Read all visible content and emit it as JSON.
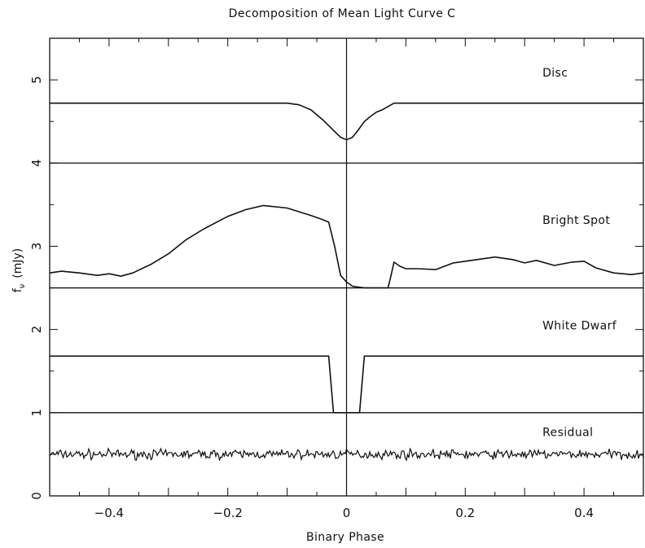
{
  "chart_data": {
    "type": "line",
    "title": "Decomposition of Mean Light Curve C",
    "xlabel": "Binary Phase",
    "ylabel_main": "f",
    "ylabel_sub": "ν",
    "ylabel_unit": "(mJy)",
    "xlim": [
      -0.5,
      0.5
    ],
    "ylim": [
      0,
      5.5
    ],
    "x_ticks": [
      -0.4,
      -0.2,
      0,
      0.2,
      0.4
    ],
    "x_tick_labels": [
      "−0.4",
      "−0.2",
      "0",
      "0.2",
      "0.4"
    ],
    "y_ticks": [
      0,
      1,
      2,
      3,
      4,
      5
    ],
    "y_tick_labels": [
      "0",
      "1",
      "2",
      "3",
      "4",
      "5"
    ],
    "vertical_line_x": 0,
    "baselines": [
      4.0,
      2.5,
      1.0
    ],
    "grid": false,
    "legend": "none",
    "annotations": [
      {
        "text": "Disc",
        "x": 0.33,
        "y": 5.04
      },
      {
        "text": "Bright Spot",
        "x": 0.33,
        "y": 3.27
      },
      {
        "text": "White Dwarf",
        "x": 0.33,
        "y": 2.0
      },
      {
        "text": "Residual",
        "x": 0.33,
        "y": 0.72
      }
    ],
    "series": [
      {
        "label": "Disc",
        "x": [
          -0.5,
          -0.1,
          -0.08,
          -0.06,
          -0.04,
          -0.02,
          -0.01,
          0.0,
          0.01,
          0.02,
          0.03,
          0.04,
          0.05,
          0.06,
          0.07,
          0.08,
          0.5
        ],
        "y": [
          4.72,
          4.72,
          4.7,
          4.64,
          4.52,
          4.38,
          4.31,
          4.28,
          4.31,
          4.4,
          4.5,
          4.56,
          4.61,
          4.64,
          4.68,
          4.72,
          4.72
        ]
      },
      {
        "label": "Bright Spot",
        "x": [
          -0.5,
          -0.48,
          -0.45,
          -0.42,
          -0.4,
          -0.38,
          -0.36,
          -0.33,
          -0.3,
          -0.27,
          -0.24,
          -0.2,
          -0.17,
          -0.14,
          -0.1,
          -0.06,
          -0.04,
          -0.03,
          -0.02,
          -0.01,
          0.0,
          0.01,
          0.03,
          0.07,
          0.075,
          0.08,
          0.09,
          0.1,
          0.12,
          0.15,
          0.18,
          0.21,
          0.25,
          0.28,
          0.3,
          0.32,
          0.35,
          0.38,
          0.4,
          0.42,
          0.45,
          0.48,
          0.5
        ],
        "y": [
          2.68,
          2.7,
          2.68,
          2.65,
          2.67,
          2.64,
          2.68,
          2.78,
          2.91,
          3.08,
          3.21,
          3.36,
          3.44,
          3.49,
          3.46,
          3.37,
          3.32,
          3.29,
          3.0,
          2.65,
          2.57,
          2.52,
          2.5,
          2.5,
          2.65,
          2.81,
          2.76,
          2.73,
          2.73,
          2.72,
          2.8,
          2.83,
          2.87,
          2.84,
          2.8,
          2.83,
          2.77,
          2.81,
          2.82,
          2.74,
          2.68,
          2.66,
          2.68
        ]
      },
      {
        "label": "White Dwarf",
        "x": [
          -0.5,
          -0.03,
          -0.022,
          0.022,
          0.03,
          0.5
        ],
        "y": [
          1.68,
          1.68,
          1.0,
          1.0,
          1.68,
          1.68
        ]
      },
      {
        "label": "Residual",
        "x": [
          -0.5,
          0.5
        ],
        "y": [
          0.5,
          0.5
        ],
        "noise_amplitude": 0.05
      }
    ]
  }
}
